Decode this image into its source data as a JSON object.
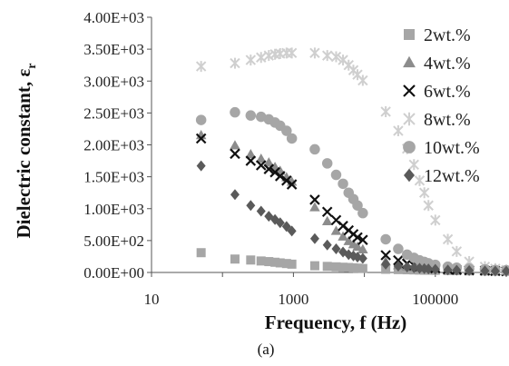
{
  "chart_data": {
    "type": "scatter",
    "x_scale": "log",
    "xlabel": "Frequency, f (Hz)",
    "ylabel_text": "Dielectric constant, ε",
    "ylabel_sub": "r",
    "caption": "(a)",
    "xlim": [
      10,
      1000000
    ],
    "ylim": [
      0,
      4000
    ],
    "x_ticks": [
      10,
      1000,
      100000
    ],
    "x_tick_labels": [
      "10",
      "1000",
      "100000"
    ],
    "y_ticks": [
      0,
      500,
      1000,
      1500,
      2000,
      2500,
      3000,
      3500,
      4000
    ],
    "y_tick_labels": [
      "0.00E+00",
      "5.00E+02",
      "1.00E+03",
      "1.50E+03",
      "2.00E+03",
      "2.50E+03",
      "3.00E+03",
      "3.50E+03",
      "4.00E+03"
    ],
    "grid": false,
    "legend_position": "right",
    "series": [
      {
        "name": "2wt.%",
        "marker": "square",
        "color": "#a6a6a6",
        "x": [
          50,
          150,
          250,
          350,
          450,
          550,
          650,
          800,
          950,
          2000,
          3000,
          4000,
          5000,
          6000,
          7000,
          8000,
          9500,
          20000,
          30000,
          40000,
          50000,
          60000,
          70000,
          80000,
          100000,
          150000,
          200000,
          300000,
          500000,
          700000,
          1000000
        ],
        "y": [
          310,
          210,
          195,
          180,
          170,
          160,
          150,
          140,
          130,
          105,
          95,
          88,
          82,
          78,
          72,
          68,
          62,
          50,
          45,
          42,
          40,
          38,
          36,
          35,
          33,
          30,
          28,
          25,
          22,
          20,
          18
        ]
      },
      {
        "name": "4wt.%",
        "marker": "triangle",
        "color": "#8c8c8c",
        "x": [
          50,
          150,
          250,
          350,
          450,
          550,
          650,
          800,
          950,
          2000,
          3000,
          4000,
          5000,
          6000,
          7000,
          8000,
          9500,
          20000,
          30000,
          40000,
          50000,
          60000,
          70000,
          80000,
          100000,
          150000,
          200000,
          300000,
          500000,
          700000,
          1000000
        ],
        "y": [
          2150,
          1990,
          1850,
          1780,
          1720,
          1650,
          1590,
          1490,
          1420,
          1020,
          800,
          650,
          560,
          490,
          440,
          400,
          360,
          170,
          110,
          90,
          80,
          70,
          65,
          60,
          55,
          45,
          40,
          35,
          30,
          25,
          22
        ]
      },
      {
        "name": "6wt.%",
        "marker": "x",
        "color": "#111111",
        "x": [
          50,
          150,
          250,
          350,
          450,
          550,
          650,
          800,
          950,
          2000,
          3000,
          4000,
          5000,
          6000,
          7000,
          8000,
          9500,
          20000,
          30000,
          40000,
          50000,
          60000,
          70000,
          80000,
          100000,
          150000,
          200000,
          300000,
          500000,
          700000,
          1000000
        ],
        "y": [
          2100,
          1860,
          1750,
          1680,
          1620,
          1570,
          1510,
          1440,
          1380,
          1140,
          950,
          820,
          730,
          660,
          600,
          550,
          510,
          270,
          190,
          140,
          110,
          95,
          85,
          75,
          65,
          50,
          42,
          35,
          28,
          24,
          20
        ]
      },
      {
        "name": "8wt.%",
        "marker": "star",
        "color": "#cfcfcf",
        "x": [
          50,
          150,
          250,
          350,
          450,
          550,
          650,
          800,
          950,
          2000,
          3000,
          4000,
          5000,
          6000,
          7000,
          8000,
          9500,
          20000,
          30000,
          40000,
          50000,
          60000,
          70000,
          80000,
          100000,
          150000,
          200000,
          300000,
          500000,
          700000,
          1000000
        ],
        "y": [
          3230,
          3280,
          3330,
          3370,
          3400,
          3420,
          3430,
          3440,
          3440,
          3440,
          3400,
          3380,
          3330,
          3250,
          3170,
          3100,
          3010,
          2520,
          2220,
          1940,
          1690,
          1440,
          1250,
          1050,
          820,
          520,
          330,
          170,
          90,
          60,
          40
        ]
      },
      {
        "name": "10wt.%",
        "marker": "circle",
        "color": "#a6a6a6",
        "x": [
          50,
          150,
          250,
          350,
          450,
          550,
          650,
          800,
          950,
          2000,
          3000,
          4000,
          5000,
          6000,
          7000,
          8000,
          9500,
          20000,
          30000,
          40000,
          50000,
          60000,
          70000,
          80000,
          100000,
          150000,
          200000,
          300000,
          500000,
          700000,
          1000000
        ],
        "y": [
          2390,
          2510,
          2460,
          2440,
          2400,
          2350,
          2300,
          2220,
          2100,
          1930,
          1710,
          1530,
          1390,
          1250,
          1150,
          1050,
          930,
          520,
          370,
          280,
          230,
          190,
          165,
          145,
          120,
          90,
          75,
          60,
          48,
          40,
          35
        ]
      },
      {
        "name": "12wt.%",
        "marker": "diamond",
        "color": "#5a5a5a",
        "x": [
          50,
          150,
          250,
          350,
          450,
          550,
          650,
          800,
          950,
          2000,
          3000,
          4000,
          5000,
          6000,
          7000,
          8000,
          9500,
          20000,
          30000,
          40000,
          50000,
          60000,
          70000,
          80000,
          100000,
          150000,
          200000,
          300000,
          500000,
          700000,
          1000000
        ],
        "y": [
          1670,
          1220,
          1050,
          960,
          880,
          830,
          780,
          720,
          650,
          530,
          430,
          370,
          320,
          280,
          260,
          240,
          220,
          130,
          100,
          85,
          75,
          65,
          60,
          55,
          50,
          40,
          35,
          30,
          25,
          22,
          20
        ]
      }
    ]
  }
}
